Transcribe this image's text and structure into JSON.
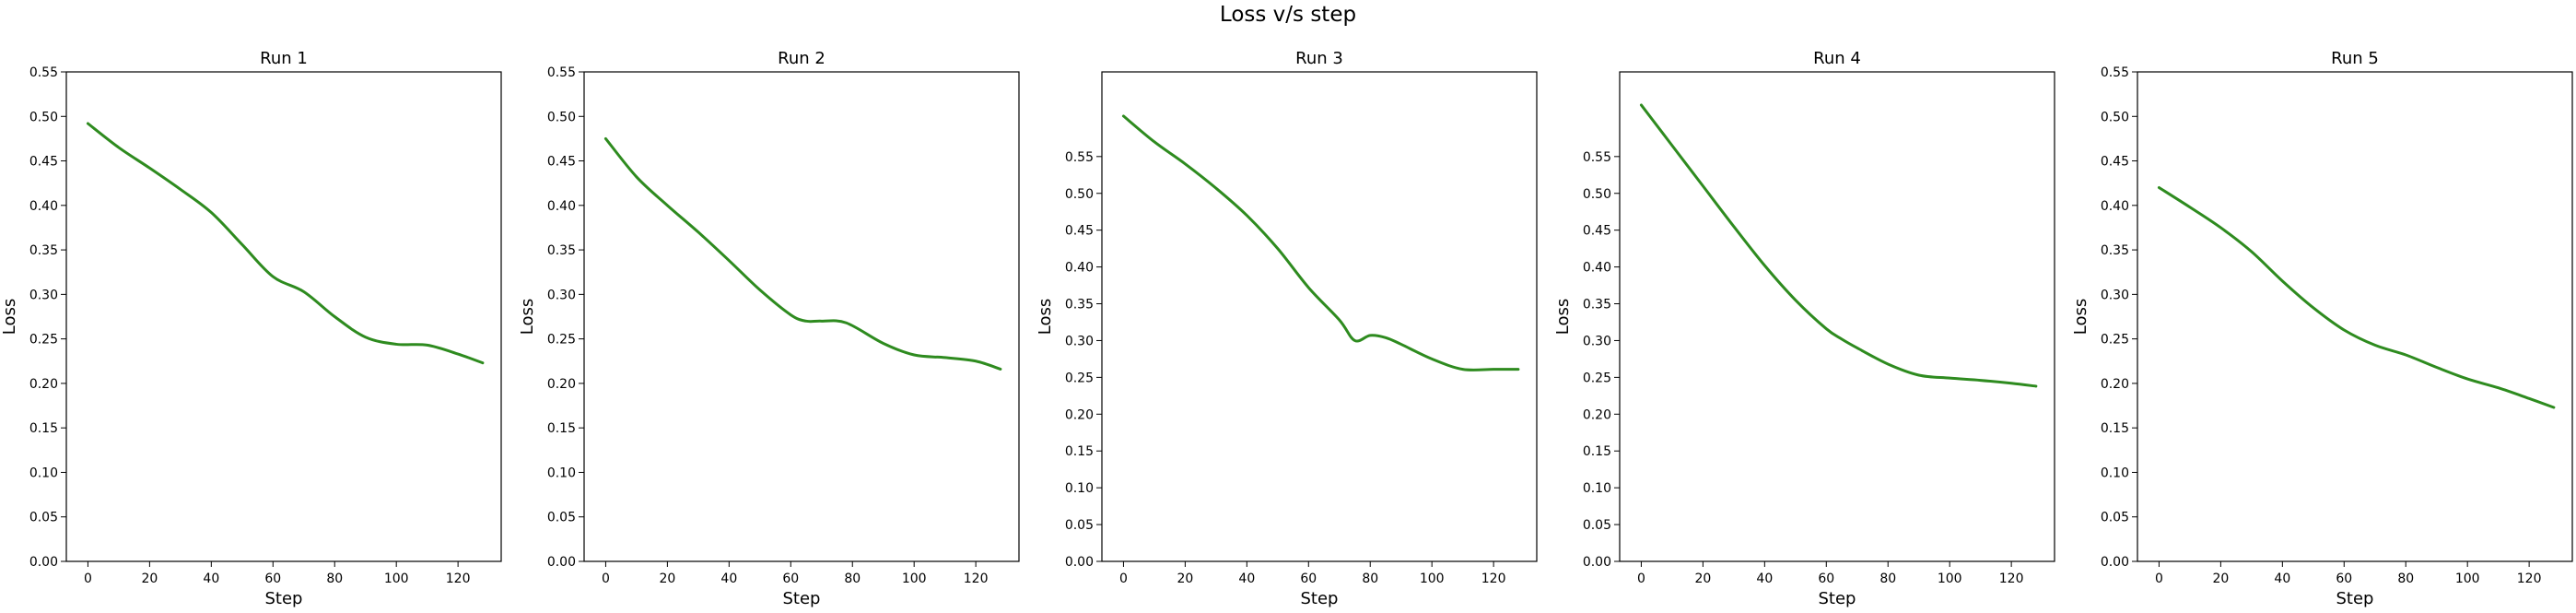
{
  "figure": {
    "title": "Loss v/s step"
  },
  "chart_data": [
    {
      "type": "line",
      "title": "Run 1",
      "xlabel": "Step",
      "ylabel": "Loss",
      "xlim": [
        -7,
        134
      ],
      "ylim": [
        0,
        0.55
      ],
      "xticks": [
        0,
        20,
        40,
        60,
        80,
        100,
        120
      ],
      "yticks": [
        0.0,
        0.05,
        0.1,
        0.15,
        0.2,
        0.25,
        0.3,
        0.35,
        0.4,
        0.45,
        0.5,
        0.55
      ],
      "grid": false,
      "color": "#2e8b1f",
      "x": [
        0,
        10,
        20,
        30,
        40,
        50,
        60,
        70,
        80,
        90,
        100,
        110,
        120,
        128
      ],
      "y": [
        0.492,
        0.465,
        0.442,
        0.418,
        0.392,
        0.356,
        0.32,
        0.303,
        0.275,
        0.252,
        0.244,
        0.243,
        0.233,
        0.223
      ]
    },
    {
      "type": "line",
      "title": "Run 2",
      "xlabel": "Step",
      "ylabel": "Loss",
      "xlim": [
        -7,
        134
      ],
      "ylim": [
        0,
        0.55
      ],
      "xticks": [
        0,
        20,
        40,
        60,
        80,
        100,
        120
      ],
      "yticks": [
        0.0,
        0.05,
        0.1,
        0.15,
        0.2,
        0.25,
        0.3,
        0.35,
        0.4,
        0.45,
        0.5,
        0.55
      ],
      "grid": false,
      "color": "#2e8b1f",
      "x": [
        0,
        10,
        20,
        30,
        40,
        50,
        60,
        65,
        70,
        78,
        90,
        100,
        110,
        120,
        128
      ],
      "y": [
        0.475,
        0.432,
        0.4,
        0.37,
        0.338,
        0.305,
        0.277,
        0.27,
        0.27,
        0.268,
        0.245,
        0.232,
        0.229,
        0.225,
        0.216
      ]
    },
    {
      "type": "line",
      "title": "Run 3",
      "xlabel": "Step",
      "ylabel": "Loss",
      "xlim": [
        -7,
        134
      ],
      "ylim": [
        0,
        0.665
      ],
      "xticks": [
        0,
        20,
        40,
        60,
        80,
        100,
        120
      ],
      "yticks": [
        0.0,
        0.05,
        0.1,
        0.15,
        0.2,
        0.25,
        0.3,
        0.35,
        0.4,
        0.45,
        0.5,
        0.55
      ],
      "grid": false,
      "color": "#2e8b1f",
      "x": [
        0,
        10,
        20,
        30,
        40,
        50,
        60,
        70,
        75,
        80,
        85,
        90,
        100,
        110,
        120,
        128
      ],
      "y": [
        0.605,
        0.57,
        0.54,
        0.507,
        0.47,
        0.425,
        0.372,
        0.328,
        0.3,
        0.307,
        0.304,
        0.295,
        0.275,
        0.261,
        0.261,
        0.261
      ]
    },
    {
      "type": "line",
      "title": "Run 4",
      "xlabel": "Step",
      "ylabel": "Loss",
      "xlim": [
        -7,
        134
      ],
      "ylim": [
        0,
        0.665
      ],
      "xticks": [
        0,
        20,
        40,
        60,
        80,
        100,
        120
      ],
      "yticks": [
        0.0,
        0.05,
        0.1,
        0.15,
        0.2,
        0.25,
        0.3,
        0.35,
        0.4,
        0.45,
        0.5,
        0.55
      ],
      "grid": false,
      "color": "#2e8b1f",
      "x": [
        0,
        10,
        20,
        30,
        40,
        50,
        60,
        65,
        70,
        80,
        90,
        100,
        110,
        120,
        128
      ],
      "y": [
        0.62,
        0.565,
        0.51,
        0.455,
        0.402,
        0.355,
        0.316,
        0.302,
        0.29,
        0.268,
        0.253,
        0.249,
        0.246,
        0.242,
        0.238
      ]
    },
    {
      "type": "line",
      "title": "Run 5",
      "xlabel": "Step",
      "ylabel": "Loss",
      "xlim": [
        -7,
        134
      ],
      "ylim": [
        0,
        0.55
      ],
      "xticks": [
        0,
        20,
        40,
        60,
        80,
        100,
        120
      ],
      "yticks": [
        0.0,
        0.05,
        0.1,
        0.15,
        0.2,
        0.25,
        0.3,
        0.35,
        0.4,
        0.45,
        0.5,
        0.55
      ],
      "grid": false,
      "color": "#2e8b1f",
      "x": [
        0,
        10,
        20,
        30,
        40,
        50,
        60,
        70,
        80,
        90,
        100,
        110,
        120,
        128
      ],
      "y": [
        0.42,
        0.398,
        0.375,
        0.348,
        0.315,
        0.285,
        0.26,
        0.243,
        0.232,
        0.218,
        0.205,
        0.195,
        0.183,
        0.173
      ]
    }
  ]
}
